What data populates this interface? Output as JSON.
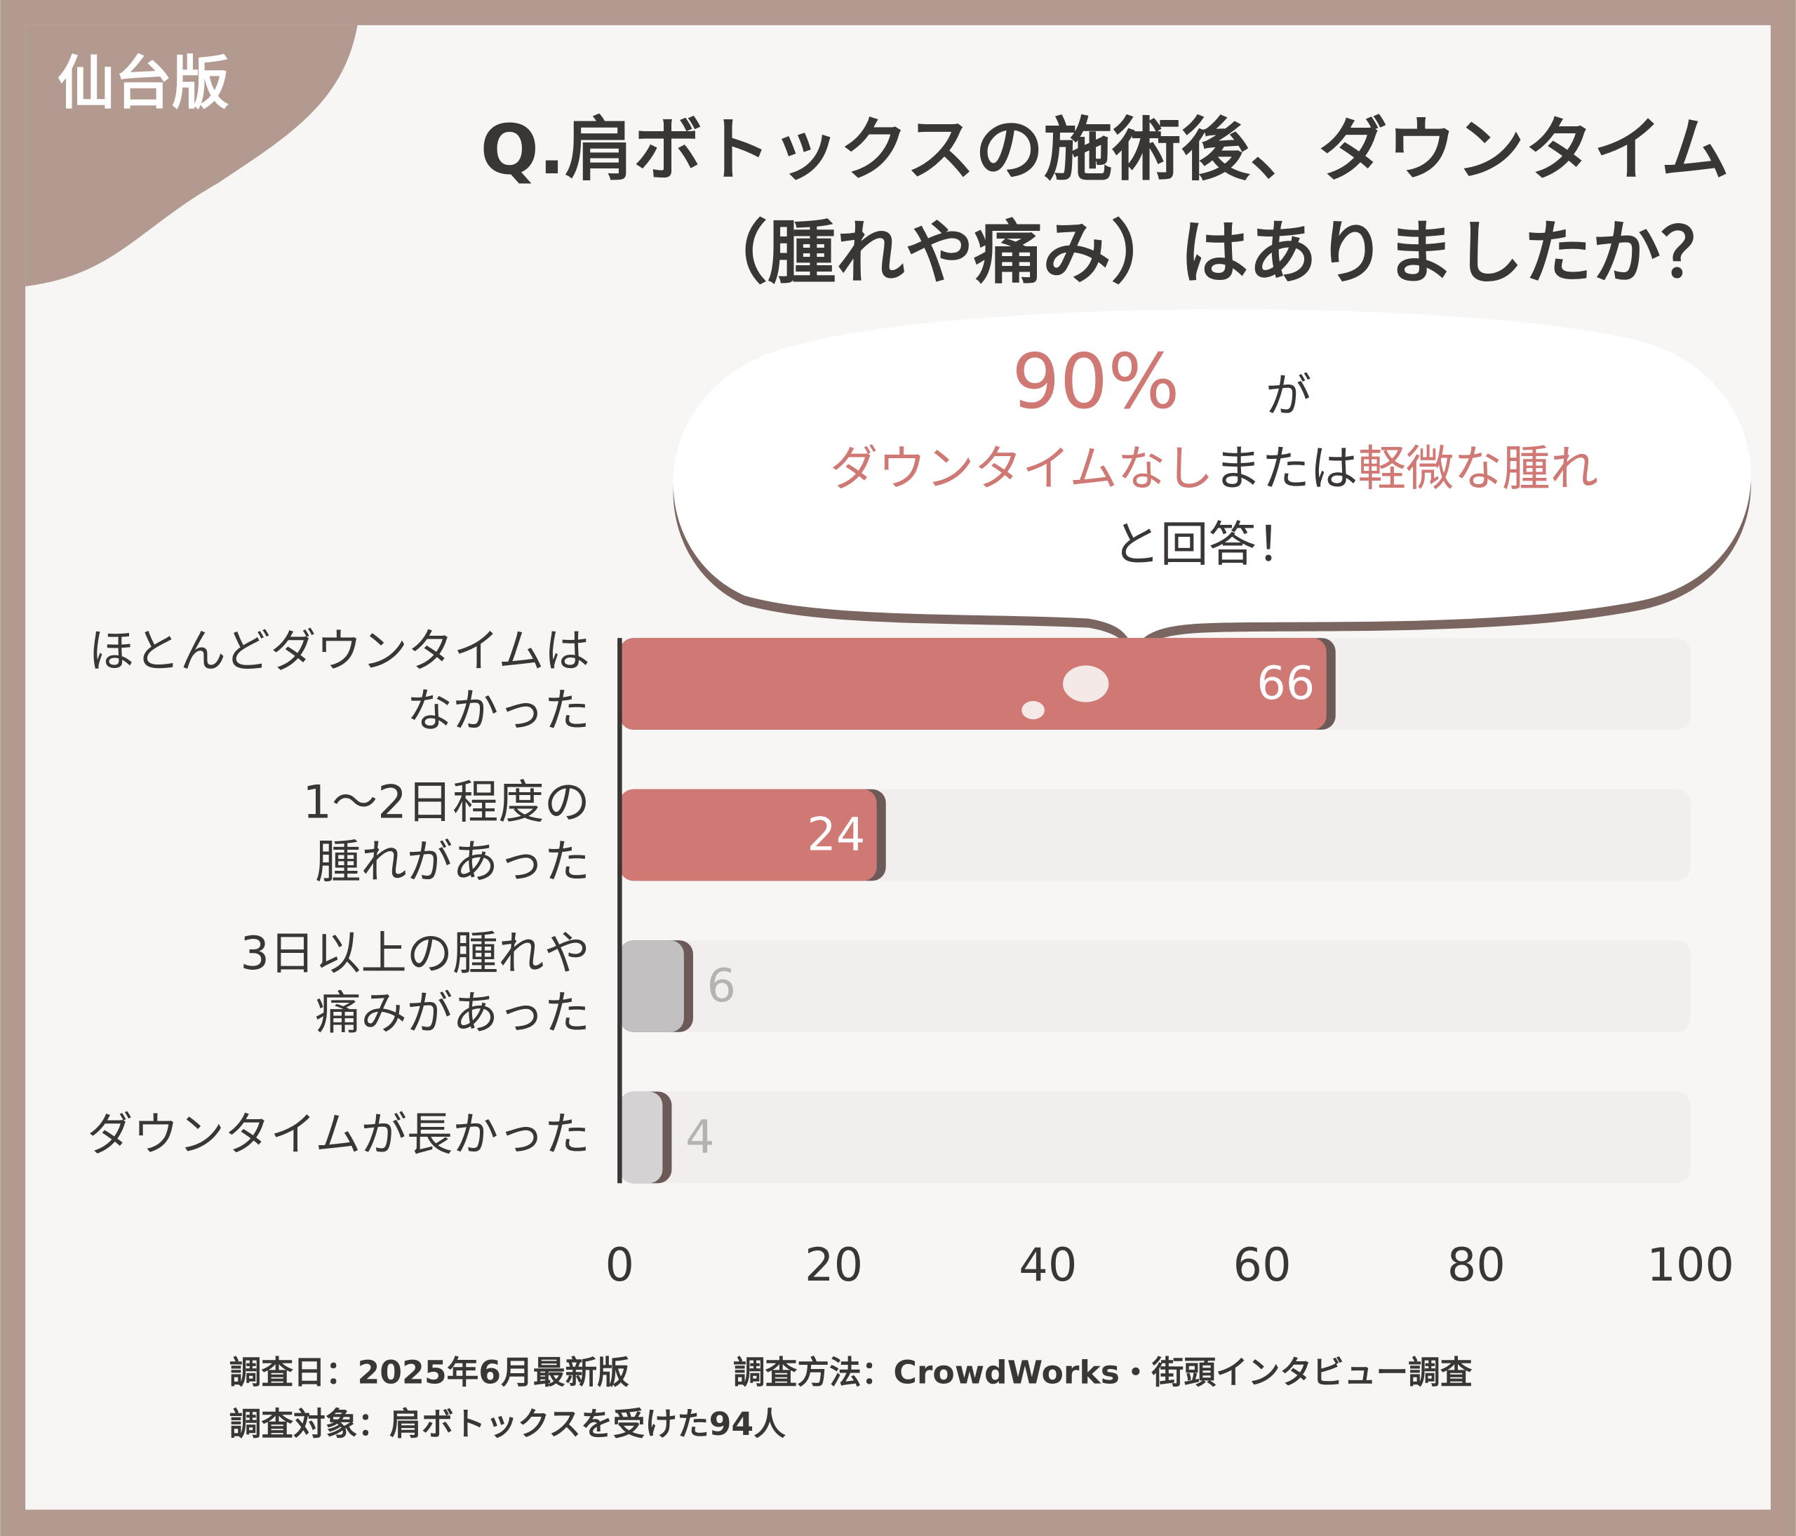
{
  "tag": "仙台版",
  "chart_data": {
    "type": "bar",
    "orientation": "horizontal",
    "title": [
      "Q.肩ボトックスの施術後、ダウンタイム",
      "（腫れや痛み）はありましたか？"
    ],
    "callout": {
      "percent": "90%",
      "line1_rest": "が",
      "line2": [
        "ダウンタイムなし",
        "または",
        "軽微な腫れ"
      ],
      "line3": "と回答！"
    },
    "categories": [
      [
        "ほとんどダウンタイムは",
        "なかった"
      ],
      [
        "1〜2日程度の",
        "腫れがあった"
      ],
      [
        "3日以上の腫れや",
        "痛みがあった"
      ],
      [
        "ダウンタイムが長かった"
      ]
    ],
    "values": [
      66,
      24,
      6,
      4
    ],
    "colors": [
      "#cf7874",
      "#cf7874",
      "#c2c0c0",
      "#d4d2d2"
    ],
    "track_color": "#f1eeed",
    "xlim": [
      0,
      100
    ],
    "xticks": [
      0,
      20,
      40,
      60,
      80,
      100
    ],
    "grid": false
  },
  "footnotes": [
    "調査日：2025年6月最新版",
    "調査方法：CrowdWorks・街頭インタビュー調査",
    "調査対象：肩ボトックスを受けた94人"
  ]
}
